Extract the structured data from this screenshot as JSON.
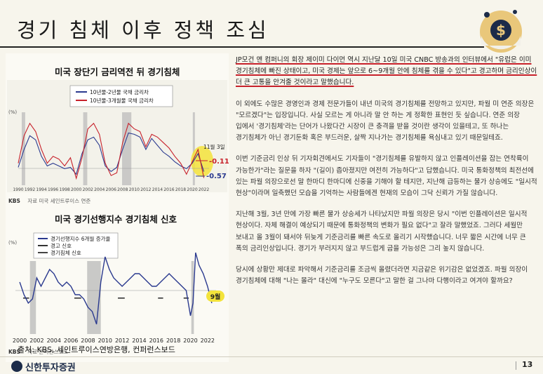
{
  "page": {
    "title": "경기 침체 이후 정책 조심",
    "source": "출처: KBS, 세인트루이스연방은행, 컨퍼런스보드",
    "brand": "신한투자증권",
    "page_number": "13"
  },
  "charts": {
    "chart1": {
      "title": "미국 장단기 금리역전 뒤 경기침체",
      "legend": [
        "10년물-2년물 국채 금리차",
        "10년물-3개월물 국채 금리차"
      ],
      "unit": "(%)",
      "kbs": "KBS",
      "source_note": "자료 미국 세인트루이스 연준",
      "annotation_date": "11월 3일",
      "annotation_v1": "-0.11",
      "annotation_v2": "-0.57",
      "colors": {
        "series1": "#2b3a8f",
        "series2": "#c7212b",
        "recession": "#b8b8b8",
        "highlight": "#f3e33b"
      }
    },
    "chart2": {
      "title": "미국 경기선행지수 경기침체 신호",
      "legend": [
        "경기선행지수 6개월 증가율",
        "경고 신호",
        "경기침체 신호"
      ],
      "unit": "(%)",
      "kbs": "KBS",
      "source_note": "자료 콘퍼런스보드",
      "annotation": "9월",
      "colors": {
        "series1": "#2b3a8f",
        "warning": "#333333",
        "recession": "#444444"
      }
    }
  },
  "chart_data": [
    {
      "type": "line",
      "title": "미국 장단기 금리역전 뒤 경기침체",
      "ylabel": "(%)",
      "x_ticks": [
        "1990",
        "1992",
        "1994",
        "1996",
        "1998",
        "2000",
        "2002",
        "2004",
        "2006",
        "2008",
        "2010",
        "2012",
        "2014",
        "2016",
        "2018",
        "2020",
        "2022"
      ],
      "ylim": [
        -1,
        4
      ],
      "series": [
        {
          "name": "10년물-2년물 국채 금리차",
          "x": [
            1990,
            1991,
            1992,
            1993,
            1994,
            1995,
            1996,
            1997,
            1998,
            1999,
            2000,
            2001,
            2002,
            2003,
            2004,
            2005,
            2006,
            2007,
            2008,
            2009,
            2010,
            2011,
            2012,
            2013,
            2014,
            2015,
            2016,
            2017,
            2018,
            2019,
            2020,
            2021,
            2022
          ],
          "values": [
            0.2,
            1.5,
            2.5,
            2.2,
            1.0,
            0.3,
            0.5,
            0.3,
            0.1,
            0.2,
            -0.3,
            1.2,
            2.2,
            2.4,
            1.8,
            0.3,
            -0.1,
            0.2,
            1.5,
            2.7,
            2.6,
            2.4,
            1.5,
            2.3,
            1.8,
            1.3,
            1.0,
            0.6,
            0.3,
            0.1,
            0.5,
            1.2,
            -0.11
          ]
        },
        {
          "name": "10년물-3개월물 국채 금리차",
          "x": [
            1990,
            1991,
            1992,
            1993,
            1994,
            1995,
            1996,
            1997,
            1998,
            1999,
            2000,
            2001,
            2002,
            2003,
            2004,
            2005,
            2006,
            2007,
            2008,
            2009,
            2010,
            2011,
            2012,
            2013,
            2014,
            2015,
            2016,
            2017,
            2018,
            2019,
            2020,
            2021,
            2022
          ],
          "values": [
            0.5,
            2.5,
            3.4,
            2.8,
            1.5,
            0.5,
            1.0,
            0.8,
            0.3,
            0.9,
            -0.6,
            0.9,
            3.0,
            3.4,
            2.6,
            0.5,
            -0.4,
            -0.2,
            2.0,
            3.4,
            3.0,
            2.8,
            1.7,
            2.6,
            2.4,
            2.0,
            1.6,
            1.0,
            0.5,
            -0.3,
            0.6,
            1.5,
            -0.57
          ]
        }
      ],
      "recessions": [
        [
          1990.6,
          1991.2
        ],
        [
          2001.2,
          2001.9
        ],
        [
          2007.9,
          2009.5
        ],
        [
          2020.1,
          2020.4
        ]
      ]
    },
    {
      "type": "line",
      "title": "미국 경기선행지수 경기침체 신호",
      "ylabel": "(%)",
      "x_ticks": [
        "2000",
        "2002",
        "2004",
        "2006",
        "2008",
        "2010",
        "2012",
        "2014",
        "2016",
        "2018",
        "2020",
        "2022"
      ],
      "series": [
        {
          "name": "경기선행지수 6개월 증가율",
          "x": [
            2000,
            2000.5,
            2001,
            2001.5,
            2002,
            2002.5,
            2003,
            2003.5,
            2004,
            2004.5,
            2005,
            2005.5,
            2006,
            2006.5,
            2007,
            2007.5,
            2008,
            2008.5,
            2009,
            2009.5,
            2010,
            2010.5,
            2011,
            2011.5,
            2012,
            2012.5,
            2013,
            2013.5,
            2014,
            2014.5,
            2015,
            2015.5,
            2016,
            2016.5,
            2017,
            2017.5,
            2018,
            2018.5,
            2019,
            2019.5,
            2020,
            2020.3,
            2020.6,
            2021,
            2021.5,
            2022,
            2022.5
          ],
          "values": [
            2,
            -1,
            -3,
            -2,
            3,
            1,
            3,
            5,
            4,
            2,
            1,
            2,
            1,
            -1,
            -1,
            -2,
            -4,
            -5,
            -8,
            2,
            8,
            5,
            3,
            2,
            1,
            2,
            3,
            4,
            4,
            3,
            2,
            1,
            1,
            2,
            3,
            4,
            3,
            2,
            1,
            0,
            -6,
            -3,
            9,
            6,
            4,
            1,
            -3
          ]
        }
      ],
      "recessions": [
        [
          2001.2,
          2001.9
        ],
        [
          2007.9,
          2009.5
        ],
        [
          2020.1,
          2020.4
        ]
      ]
    }
  ],
  "article": {
    "p1_u1": "JP모건 앤 컴퍼니의 회장 제이미 다이먼 역시 지난달 10일 미국 CNBC 방송과의 인터뷰에서 \"유럽은 이미 경기침체에 빠진 상태이고, 미국 경제는 앞으로 6~9개월 안에 침체를 겪을 수 있다\"고 경고하며 금리인상이 더 큰 고통을 안겨줄 것이라고 말했습니다.",
    "p2": "이 외에도 수많은 경영인과 경제 전문가들이 내년 미국의 경기침체를 전망하고 있지만, 파월 미 연준 의장은 \"모르겠다\"는 입장입니다. 사실 모르는 게 아니라 말 안 하는 게 정확한 표현인 듯 싶습니다. 연준 의장 입에서 '경기침체'라는 단어가 나왔다간 시장이 큰 충격을 받을 것이란 생각이 있을테고, 또 하나는 경기침체가 아닌 경기둔화 혹은 부드러운, 살짝 지나가는 경기침체를 욕심내고 있기 때문일테죠.",
    "p3": "이번 기준금리 인상 뒤 기자회견에서도 기자들이 \"경기침체를 유발하지 않고 인플레이션을 잡는 연착륙이 가능한가\"라는 질문을 하자 \"(길이) 좁아졌지만 여전히 가능하다\"고 답했습니다. 미국 통화정책의 최전선에 있는 파월 의장으로선 말 한마디 한마디에 신중을 기해야 할 테지만, 지난해 급등하는 물가 상승에도 \"일시적 현상\"이라며 일축했던 모습을 기억하는 사람들에겐 현재의 모습이 그닥 신뢰가 가질 않습니다.",
    "p4": "지난해 3월, 3년 만에 가장 빠른 물가 상승세가 나타났지만 파월 의장은 당시 \"이번 인플레이션은 일시적 현상이다. 자체 해결이 예상되기 때문에 통화정책의 변화가 필요 없다\"고 잘라 말했었죠. 그러다 세월만 보내고 올 3월이 돼서야 뒤늦게 기준금리를 빠른 속도로 올리기 시작했습니다. 너무 짧은 시간에 너무 큰 폭의 금리인상입니다. 경기가 부러지지 않고 부드럽게 굽을 가능성은 그리 높지 않습니다.",
    "p5": "당시에 상황만 제대로 파악해서 기준금리를 조금씩 올렸더라면 지금같은 위기감은 없었겠죠. 파월 의장이 경기침체에 대해 \"나는 몰라\" 대신에 \"누구도 모른다\"고 말한 걸 그나마 다행이라고 여겨야 할까요?"
  }
}
